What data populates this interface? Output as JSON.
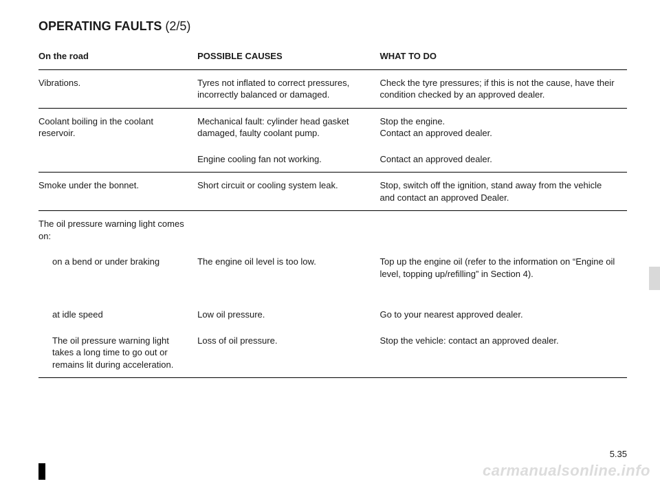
{
  "title_main": "OPERATING FAULTS",
  "title_part": "(2/5)",
  "headers": {
    "c1": "On the road",
    "c2": "POSSIBLE CAUSES",
    "c3": "WHAT TO DO"
  },
  "rows": {
    "r1": {
      "c1": "Vibrations.",
      "c2": "Tyres not inflated to correct pressures, incorrectly balanced or damaged.",
      "c3": "Check the tyre pressures; if this is not the cause, have their condition checked by an approved dealer."
    },
    "r2a": {
      "c1": "Coolant boiling in the coolant reservoir.",
      "c2": "Mechanical fault: cylinder head gasket damaged, faulty coolant pump.",
      "c3": "Stop the engine.\nContact an approved dealer."
    },
    "r2b": {
      "c1": "",
      "c2": "Engine cooling fan not working.",
      "c3": "Contact an approved dealer."
    },
    "r3": {
      "c1": "Smoke under the bonnet.",
      "c2": "Short circuit or cooling system leak.",
      "c3": "Stop, switch off the ignition, stand away from the vehicle and contact an approved Dealer."
    },
    "r4h": {
      "c1": "The oil pressure warning light comes on:",
      "c2": "",
      "c3": ""
    },
    "r4a": {
      "c1": "on a bend or under braking",
      "c2": "The engine oil level is too low.",
      "c3": "Top up the engine oil (refer to the information on “Engine oil level, topping up/refilling” in Section 4)."
    },
    "r4b": {
      "c1": "at idle speed",
      "c2": "Low oil pressure.",
      "c3": "Go to your nearest approved dealer."
    },
    "r4c": {
      "c1": "The oil pressure warning light takes a long time to go out or remains lit during acceleration.",
      "c2": "Loss of oil pressure.",
      "c3": "Stop the vehicle: contact an approved dealer."
    }
  },
  "page_number": "5.35",
  "watermark": "carmanualsonline.info"
}
